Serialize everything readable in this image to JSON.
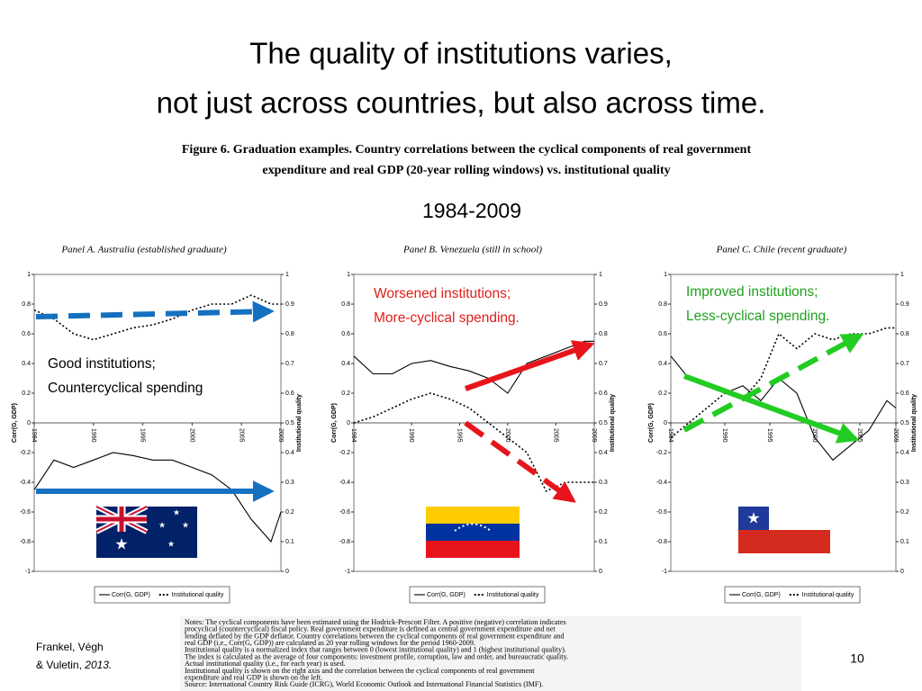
{
  "slide": {
    "title": [
      "The quality of institutions varies,",
      "not just across countries, but also across time."
    ],
    "caption": [
      "Figure 6. Graduation examples. Country correlations between the cyclical components of real government",
      "expenditure and real GDP (20-year rolling windows) vs. institutional quality"
    ],
    "period": "1984-2009",
    "notes": [
      "Notes: The cyclical components have been estimated using the Hodrick-Prescott Filter. A positive (negative) correlation indicates",
      "procyclical (countercyclical) fiscal policy. Real government expenditure is defined as central government expenditure and net",
      "lending deflated by the GDP deflator. Country correlations between the cyclical components of real government expenditure and",
      "real GDP (i.e., Corr(G, GDP)) are calculated as 20 year rolling windows for the period 1960-2009.",
      "Institutional quality is a normalized index that ranges between 0 (lowest institutional quality) and 1 (highest institutional quality).",
      "The index is calculated as the average of four components: investment profile, corruption, law and order, and bureaucratic quality.",
      "Actual institutional quality (i.e., for each year) is used.",
      "Institutional quality is shown on the right axis and the correlation between the cyclical components of real government",
      "expenditure and real GDP is shown on the left.",
      "Source: International Country Risk Guide (ICRG), World Economic Outlook and International Financial Statistics (IMF)."
    ],
    "source": [
      "Frankel, Végh",
      "& Vuletin, ",
      "2013."
    ],
    "page_number": "10"
  },
  "chart_data": [
    {
      "type": "line",
      "title": "Panel A. Australia (established graduate)",
      "ylabel": "Corr(G, GDP)",
      "y2label": "Institutional quality",
      "x": [
        1984,
        1986,
        1988,
        1990,
        1992,
        1994,
        1996,
        1998,
        2000,
        2002,
        2004,
        2006,
        2008,
        2009
      ],
      "xlim": [
        1984,
        2009
      ],
      "xticks": [
        1984,
        1990,
        1995,
        2000,
        2005,
        2009
      ],
      "ylim": [
        -1,
        1
      ],
      "yticks": [
        -1,
        -0.8,
        -0.6,
        -0.4,
        -0.2,
        0,
        0.2,
        0.4,
        0.6,
        0.8,
        1
      ],
      "y2lim": [
        0,
        1
      ],
      "y2ticks": [
        0,
        0.1,
        0.2,
        0.3,
        0.4,
        0.5,
        0.6,
        0.7,
        0.8,
        0.9,
        1
      ],
      "series": [
        {
          "name": "Corr(G, GDP)",
          "color": "#000000",
          "line_style": "solid",
          "values": [
            -0.45,
            -0.25,
            -0.3,
            -0.25,
            -0.2,
            -0.22,
            -0.25,
            -0.25,
            -0.3,
            -0.35,
            -0.45,
            -0.65,
            -0.8,
            -0.6
          ]
        },
        {
          "name": "Institutional quality",
          "color": "#000000",
          "line_style": "dotted",
          "axis": "y2",
          "values": [
            0.88,
            0.85,
            0.8,
            0.78,
            0.8,
            0.82,
            0.83,
            0.85,
            0.88,
            0.9,
            0.9,
            0.93,
            0.9,
            0.9
          ]
        }
      ],
      "annotations": [
        "Good institutions;",
        "Countercyclical spending"
      ],
      "annotation_color": "#000000"
    },
    {
      "type": "line",
      "title": "Panel B. Venezuela (still in school)",
      "ylabel": "Corr(G, GDP)",
      "y2label": "Institutional quality",
      "x": [
        1984,
        1986,
        1988,
        1990,
        1992,
        1994,
        1996,
        1998,
        2000,
        2002,
        2004,
        2006,
        2008,
        2009
      ],
      "xlim": [
        1984,
        2009
      ],
      "xticks": [
        1984,
        1990,
        1995,
        2000,
        2005,
        2009
      ],
      "ylim": [
        -1,
        1
      ],
      "yticks": [
        -1,
        -0.8,
        -0.6,
        -0.4,
        -0.2,
        0,
        0.2,
        0.4,
        0.6,
        0.8,
        1
      ],
      "y2lim": [
        0,
        1
      ],
      "y2ticks": [
        0,
        0.1,
        0.2,
        0.3,
        0.4,
        0.5,
        0.6,
        0.7,
        0.8,
        0.9,
        1
      ],
      "series": [
        {
          "name": "Corr(G, GDP)",
          "color": "#000000",
          "line_style": "solid",
          "values": [
            0.45,
            0.33,
            0.33,
            0.4,
            0.42,
            0.38,
            0.35,
            0.3,
            0.2,
            0.4,
            0.45,
            0.5,
            0.55,
            0.55
          ]
        },
        {
          "name": "Institutional quality",
          "color": "#000000",
          "line_style": "dotted",
          "axis": "y2",
          "values": [
            0.5,
            0.52,
            0.55,
            0.58,
            0.6,
            0.58,
            0.55,
            0.5,
            0.45,
            0.4,
            0.27,
            0.3,
            0.3,
            0.3
          ]
        }
      ],
      "annotations": [
        "Worsened institutions;",
        "More-cyclical spending."
      ],
      "annotation_color": "#e0201b"
    },
    {
      "type": "line",
      "title": "Panel C. Chile (recent graduate)",
      "ylabel": "Corr(G, GDP)",
      "y2label": "Institutional quality",
      "x": [
        1984,
        1986,
        1988,
        1990,
        1992,
        1994,
        1996,
        1998,
        2000,
        2002,
        2004,
        2006,
        2008,
        2009
      ],
      "xlim": [
        1984,
        2009
      ],
      "xticks": [
        1984,
        1990,
        1995,
        2000,
        2005,
        2009
      ],
      "ylim": [
        -1,
        1
      ],
      "yticks": [
        -1,
        -0.8,
        -0.6,
        -0.4,
        -0.2,
        0,
        0.2,
        0.4,
        0.6,
        0.8,
        1
      ],
      "y2lim": [
        0,
        1
      ],
      "y2ticks": [
        0,
        0.1,
        0.2,
        0.3,
        0.4,
        0.5,
        0.6,
        0.7,
        0.8,
        0.9,
        1
      ],
      "series": [
        {
          "name": "Corr(G, GDP)",
          "color": "#000000",
          "line_style": "solid",
          "values": [
            0.45,
            0.3,
            0.25,
            0.2,
            0.25,
            0.15,
            0.3,
            0.2,
            -0.1,
            -0.25,
            -0.15,
            -0.05,
            0.15,
            0.1
          ]
        },
        {
          "name": "Institutional quality",
          "color": "#000000",
          "line_style": "dotted",
          "axis": "y2",
          "values": [
            0.45,
            0.5,
            0.55,
            0.6,
            0.58,
            0.65,
            0.8,
            0.75,
            0.8,
            0.78,
            0.8,
            0.8,
            0.82,
            0.82
          ]
        }
      ],
      "annotations": [
        "Improved institutions;",
        "Less-cyclical spending."
      ],
      "annotation_color": "#1fa01f"
    }
  ]
}
